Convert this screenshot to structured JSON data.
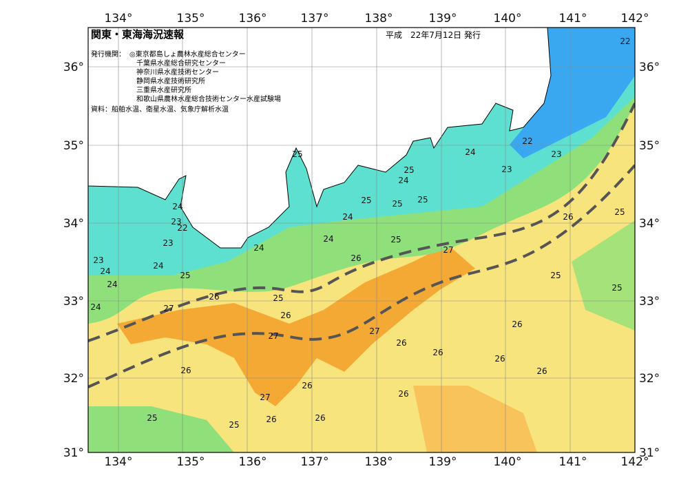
{
  "header": {
    "title": "関東・東海海況速報",
    "date": "平成　22年7月12日 発行"
  },
  "publishers": {
    "label": "発行機関：",
    "items": [
      "◎東京都島しょ農林水産総合センター",
      "千葉県水産総合研究センター",
      "神奈川県水産技術センター",
      "静岡県水産技術研究所",
      "三重県水産研究所",
      "和歌山県農林水産総合技術センター水産試験場"
    ]
  },
  "source": "資料：船舶水温、衛星水温、気象庁解析水温",
  "axes": {
    "longitudes": [
      "134°",
      "135°",
      "136°",
      "137°",
      "138°",
      "139°",
      "140°",
      "141°",
      "142°"
    ],
    "latitudes": [
      "36°",
      "35°",
      "34°",
      "33°",
      "32°",
      "31°"
    ]
  },
  "contour_labels": [
    22,
    22,
    23,
    23,
    24,
    25,
    25,
    24,
    25,
    25,
    25,
    24,
    24,
    23,
    22,
    23,
    24,
    25,
    27,
    26,
    25,
    24,
    23,
    24,
    24,
    25,
    24,
    26,
    25,
    25,
    26,
    25,
    24,
    27,
    26,
    26,
    27,
    27,
    26,
    26,
    26,
    26,
    26,
    26,
    26,
    27,
    25,
    26,
    26,
    25
  ]
}
